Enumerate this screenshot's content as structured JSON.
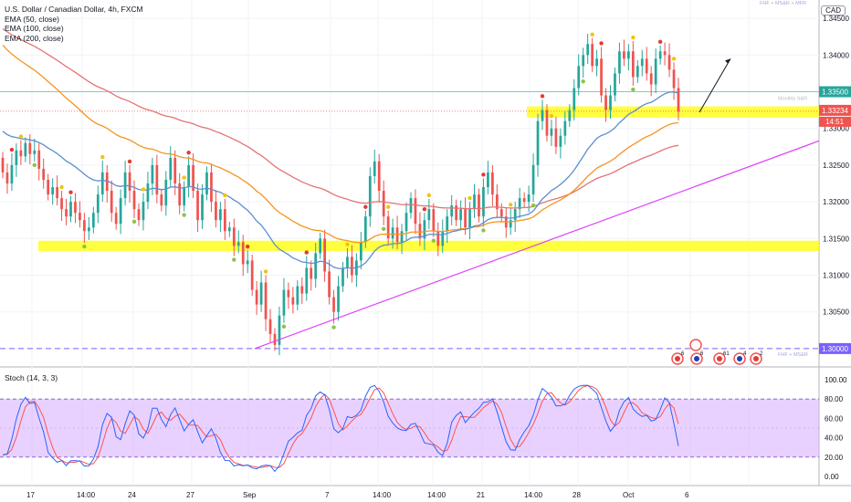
{
  "legend": {
    "title": "U.S. Dollar / Canadian Dollar, 4h, FXCM",
    "ema1": "EMA (50, close)",
    "ema2": "EMA (100, close)",
    "ema3": "EMA (200, close)"
  },
  "currency_badge": "CAD",
  "top_right_label": "FHF + MS&R + MFR",
  "bottom_line_label": "FHF + MS&R",
  "monthly_label": "Monthly S&R",
  "stoch_label": "Stoch (14, 3, 3)",
  "price_axis": {
    "ticks": [
      "1.34500",
      "1.34000",
      "1.33500",
      "1.33000",
      "1.32500",
      "1.32000",
      "1.31500",
      "1.31000",
      "1.30500",
      "1.30000"
    ],
    "current_price": "1.33234",
    "countdown": "14:51",
    "level_label": "1.33500",
    "level_label2": "1.30000"
  },
  "stoch_axis": {
    "ticks": [
      "100.00",
      "80.00",
      "60.00",
      "40.00",
      "20.00",
      "0.00"
    ]
  },
  "time_axis": {
    "ticks": [
      "17",
      "14:00",
      "24",
      "27",
      "Sep",
      "7",
      "14:00",
      "14:00",
      "21",
      "14:00",
      "28",
      "Oct",
      "6"
    ]
  },
  "event_counts": [
    "6",
    "6",
    "61",
    "4",
    "2"
  ],
  "colors": {
    "bull": "#26a69a",
    "bear": "#ef5350",
    "ema50": "#5b8fd1",
    "ema100": "#f7931e",
    "ema200": "#e57373",
    "trendline": "#e040fb",
    "zone": "#ffff00",
    "stoch_k": "#2962ff",
    "stoch_d": "#ff5252",
    "stoch_band": "#d9b3ff"
  },
  "chart_data": {
    "type": "candlestick",
    "ylim": [
      1.2975,
      1.3475
    ],
    "start_price": 1.326,
    "closes": [
      1.324,
      1.3225,
      1.325,
      1.327,
      1.3262,
      1.328,
      1.3265,
      1.327,
      1.3245,
      1.323,
      1.321,
      1.322,
      1.3205,
      1.319,
      1.318,
      1.32,
      1.3185,
      1.3175,
      1.316,
      1.3165,
      1.3185,
      1.321,
      1.324,
      1.3215,
      1.3185,
      1.317,
      1.3205,
      1.324,
      1.3215,
      1.319,
      1.3175,
      1.32,
      1.3225,
      1.325,
      1.321,
      1.3195,
      1.323,
      1.326,
      1.3225,
      1.3195,
      1.322,
      1.325,
      1.3215,
      1.3175,
      1.321,
      1.324,
      1.32,
      1.3175,
      1.319,
      1.316,
      1.3165,
      1.314,
      1.3145,
      1.3115,
      1.312,
      1.308,
      1.306,
      1.309,
      1.304,
      1.302,
      1.3005,
      1.3045,
      1.308,
      1.307,
      1.306,
      1.3085,
      1.3075,
      1.311,
      1.3095,
      1.313,
      1.315,
      1.3105,
      1.307,
      1.305,
      1.3085,
      1.311,
      1.3125,
      1.31,
      1.312,
      1.3145,
      1.318,
      1.3235,
      1.3255,
      1.3215,
      1.318,
      1.315,
      1.3165,
      1.3145,
      1.316,
      1.3185,
      1.3205,
      1.317,
      1.315,
      1.3175,
      1.319,
      1.316,
      1.314,
      1.316,
      1.318,
      1.3195,
      1.3175,
      1.319,
      1.3165,
      1.319,
      1.321,
      1.318,
      1.322,
      1.324,
      1.321,
      1.319,
      1.318,
      1.3165,
      1.3175,
      1.319,
      1.3205,
      1.32,
      1.321,
      1.325,
      1.331,
      1.3325,
      1.329,
      1.33,
      1.3275,
      1.329,
      1.331,
      1.3325,
      1.3355,
      1.3385,
      1.34,
      1.3415,
      1.3385,
      1.3395,
      1.3345,
      1.3325,
      1.3345,
      1.3375,
      1.3405,
      1.3395,
      1.3405,
      1.337,
      1.3385,
      1.3395,
      1.3375,
      1.336,
      1.3395,
      1.3405,
      1.34,
      1.338,
      1.3355,
      1.3323
    ]
  }
}
